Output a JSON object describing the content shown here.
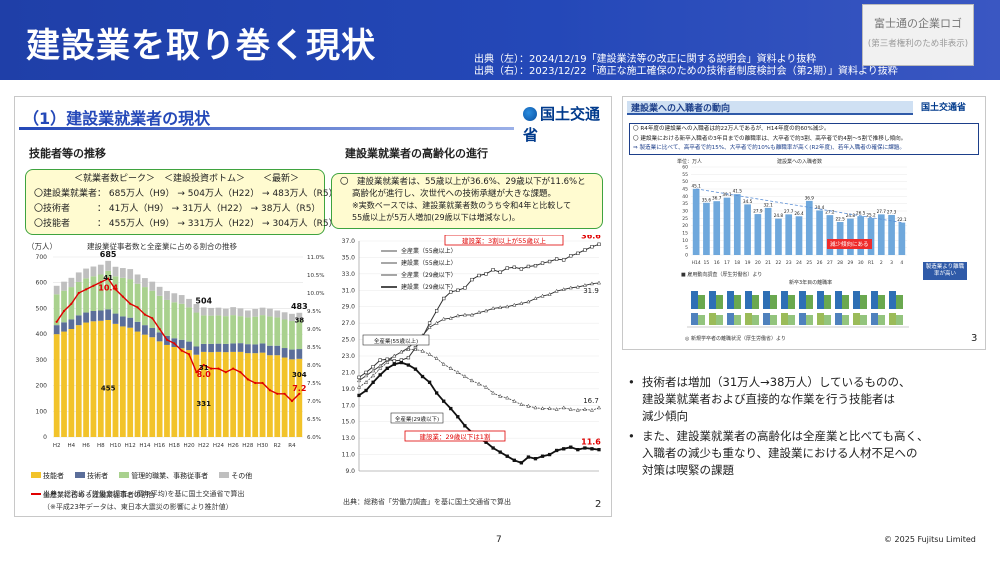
{
  "header": {
    "title": "建設業を取り巻く現状",
    "source_left": "出典（左）：2024/12/19「建設業法等の改正に関する説明会」資料より抜粋",
    "source_right": "出典（右）：2023/12/22「適正な施工確保のための技術者制度検討会（第2期）」資料より抜粋",
    "logo_line1": "富士通の企業ロゴ",
    "logo_line2": "(第三者権利のため非表示)"
  },
  "left_slide": {
    "title": "（1）建設業就業者の現状",
    "ministry": "国土交通省",
    "sec1": "技能者等の推移",
    "sec2": "建設業就業者の高齢化の進行",
    "box1": {
      "header": "＜就業者数ピーク＞　＜建設投資ボトム＞　　＜最新＞",
      "rows": [
        "〇建設業就業者：  685万人（H9）  →  504万人（H22）  →  483万人（R5）",
        "〇技術者　　　：   41万人（H9）  →   31万人（H22）  →   38万人（R5）",
        "〇技能者　　　：  455万人（H9）  →  331万人（H22）  →  304万人（R5）"
      ]
    },
    "box2": {
      "line1": "〇　建設業就業者は、55歳以上が36.6%、29歳以下が11.6%と",
      "line2": "高齢化が進行し、次世代への技術承継が大きな課題。",
      "line3": "※実数ベースでは、建設業就業者数のうち令和4年と比較して",
      "line4": "55歳以上が5万人増加(29歳以下は増減なし)。"
    },
    "chart1_unit": "（万人）",
    "chart1_title": "建設業従事者数と全産業に占める割合の推移",
    "chart1_legend": [
      "技能者",
      "技術者",
      "管理的職業、事務従事者",
      "その他",
      "全産業に占める建設業従事者の割合"
    ],
    "chart1_src1": "出典：総務省「労働力調査」(暦年平均)を基に国土交通省で算出",
    "chart1_src2": "（※平成23年データは、東日本大震災の影響により推計値）",
    "chart2_callout1": "建設業：3割以上が55歳以上",
    "chart2_callout2": "建設業：29歳以下は1割",
    "chart2_label1": "全産業(55歳以上)",
    "chart2_label2": "全産業(29歳以下)",
    "chart2_src": "出典：総務省「労働力調査」を基に国土交通省で算出",
    "page_no": "2"
  },
  "right_slide": {
    "title": "建設業への入職者の動向",
    "ministry": "国土交通省",
    "line1": "〇 R4年度の建設業への入職者は約22万人であるが、H14年度の約60%減少。",
    "line2": "〇 建設業における新卒入職者の3年目までの離職率は、大卒者で約3割、高卒者で約4割～5割で推移し傾向。",
    "line3": "⇒ 製造業に比べて、高卒者で約15%、大卒者で約10%も離職率が高く(R2年度)、若年入職者の確保に課題。",
    "bar_unit": "単位：万人",
    "bar_legend": "建設業への入職者数",
    "bar_callout": "減少傾向にある",
    "bar_src": "■ 雇用動向調査（厚生労働省）より",
    "chart3_title": "新卒3年目の離職率",
    "chart3_callout": "製造業より離職率が高い",
    "chart3_src": "◎ 新規学卒者の離職状況（厚生労働省）より",
    "page_no": "3"
  },
  "bullets": [
    [
      "技術者は増加（31万人→38万人）しているものの、",
      "建設業就業者および直接的な作業を行う技能者は",
      "減少傾向"
    ],
    [
      "また、建設業就業者の高齢化は全産業と比べても高く、",
      "入職者の減少も重なり、建設業における人材不足への",
      "対策は喫緊の課題"
    ]
  ],
  "footer": {
    "page": "7",
    "copyright": "© 2025 Fujitsu Limited"
  },
  "chart_data": [
    {
      "type": "bar",
      "title": "建設業従事者数と全産業に占める割合の推移",
      "unit": "万人",
      "categories": [
        "H2",
        "H3",
        "H4",
        "H5",
        "H6",
        "H7",
        "H8",
        "H9",
        "H10",
        "H11",
        "H12",
        "H13",
        "H14",
        "H15",
        "H16",
        "H17",
        "H18",
        "H19",
        "H20",
        "H21",
        "H22",
        "H23",
        "H24",
        "H25",
        "H26",
        "H27",
        "H28",
        "H29",
        "H30",
        "R1",
        "R2",
        "R3",
        "R4",
        "R5"
      ],
      "x_tick_labels": [
        "H2",
        "H4",
        "H6",
        "H8",
        "H10",
        "H12",
        "H14",
        "H16",
        "H18",
        "H20",
        "H22",
        "H24",
        "H26",
        "H28",
        "H30",
        "R2",
        "R4"
      ],
      "ylim": [
        0,
        700
      ],
      "y_ticks": [
        0,
        100,
        200,
        300,
        400,
        500,
        600,
        700
      ],
      "y2lim": [
        6.0,
        11.0
      ],
      "y2_ticks": [
        "6.0%",
        "6.5%",
        "7.0%",
        "7.5%",
        "8.0%",
        "8.5%",
        "9.0%",
        "9.5%",
        "10.0%",
        "10.5%",
        "11.0%"
      ],
      "total": [
        588,
        604,
        619,
        640,
        655,
        663,
        670,
        685,
        662,
        657,
        653,
        632,
        618,
        604,
        584,
        568,
        559,
        552,
        537,
        517,
        504,
        502,
        503,
        499,
        505,
        500,
        492,
        498,
        503,
        499,
        492,
        485,
        479,
        483
      ],
      "series": [
        {
          "name": "技能者",
          "values": [
            400,
            410,
            420,
            435,
            445,
            450,
            452,
            455,
            440,
            430,
            425,
            410,
            398,
            388,
            372,
            358,
            350,
            345,
            338,
            320,
            331,
            330,
            331,
            330,
            331,
            331,
            326,
            326,
            328,
            318,
            318,
            309,
            302,
            304
          ]
        },
        {
          "name": "技術者",
          "values": [
            35,
            36,
            37,
            38,
            39,
            40,
            40,
            41,
            40,
            39,
            39,
            38,
            37,
            36,
            35,
            35,
            34,
            33,
            33,
            32,
            31,
            32,
            32,
            32,
            33,
            34,
            35,
            34,
            36,
            37,
            37,
            37,
            38,
            38
          ]
        },
        {
          "name": "管理的職業、事務従事者",
          "values": [
            120,
            123,
            126,
            130,
            133,
            135,
            140,
            150,
            145,
            150,
            150,
            148,
            148,
            145,
            142,
            140,
            140,
            140,
            133,
            132,
            111,
            110,
            110,
            108,
            110,
            105,
            104,
            108,
            110,
            114,
            110,
            111,
            111,
            113
          ]
        },
        {
          "name": "その他",
          "values": [
            33,
            35,
            36,
            37,
            38,
            38,
            38,
            39,
            37,
            38,
            39,
            36,
            35,
            35,
            35,
            35,
            35,
            34,
            33,
            33,
            31,
            30,
            30,
            29,
            31,
            30,
            27,
            30,
            29,
            30,
            27,
            28,
            28,
            28
          ]
        }
      ],
      "line_series": {
        "name": "全産業に占める建設業従事者の割合",
        "values": [
          9.2,
          9.5,
          9.7,
          10.0,
          10.1,
          10.2,
          10.3,
          10.4,
          10.1,
          9.9,
          9.7,
          9.6,
          9.4,
          9.3,
          9.0,
          8.7,
          8.6,
          8.4,
          8.3,
          7.8,
          8.0,
          7.9,
          7.9,
          7.8,
          7.9,
          7.8,
          7.6,
          7.5,
          7.5,
          7.3,
          7.2,
          7.2,
          7.0,
          7.2
        ]
      },
      "annotations": [
        "685",
        "10.4",
        "41",
        "504",
        "31",
        "8.0",
        "455",
        "331",
        "483",
        "38",
        "7.2",
        "304"
      ]
    },
    {
      "type": "line",
      "ylim": [
        9.0,
        37.0
      ],
      "y_ticks": [
        "9.0",
        "11.0",
        "13.0",
        "15.0",
        "17.0",
        "19.0",
        "21.0",
        "23.0",
        "25.0",
        "27.0",
        "29.0",
        "31.0",
        "33.0",
        "35.0",
        "37.0"
      ],
      "series": [
        {
          "name": "全産業（55歳以上）",
          "values": [
            20.0,
            20.6,
            21.2,
            21.8,
            22.5,
            23.0,
            23.5,
            24.0,
            24.8,
            25.5,
            26.5,
            27.0,
            27.5,
            27.6,
            27.9,
            28.0,
            28.0,
            28.3,
            28.5,
            28.8,
            28.9,
            29.0,
            29.2,
            29.4,
            29.6,
            30.0,
            30.3,
            30.5,
            30.9,
            31.1,
            31.3,
            31.4,
            31.6,
            31.8,
            31.9
          ]
        },
        {
          "name": "建設業（55歳以上）",
          "values": [
            20.4,
            21.0,
            21.7,
            22.5,
            22.6,
            22.4,
            22.5,
            22.8,
            24.0,
            25.3,
            27.0,
            28.5,
            30.0,
            30.8,
            31.0,
            31.3,
            32.3,
            32.8,
            33.0,
            33.5,
            33.2,
            33.7,
            33.8,
            33.6,
            33.9,
            34.0,
            34.3,
            34.5,
            34.8,
            34.7,
            35.2,
            35.5,
            35.9,
            36.3,
            36.6
          ]
        },
        {
          "name": "全産業（29歳以下）",
          "values": [
            19.2,
            19.8,
            20.6,
            21.5,
            22.2,
            23.0,
            23.5,
            23.8,
            23.8,
            23.6,
            23.2,
            22.7,
            22.0,
            21.5,
            21.0,
            20.5,
            20.0,
            19.6,
            19.2,
            18.5,
            18.1,
            17.9,
            17.5,
            17.1,
            16.9,
            16.7,
            16.6,
            16.6,
            16.5,
            16.7,
            16.5,
            16.4,
            16.5,
            16.4,
            16.7
          ]
        },
        {
          "name": "建設業（29歳以下）",
          "values": [
            18.2,
            18.8,
            19.8,
            20.7,
            21.5,
            22.0,
            22.2,
            21.9,
            21.4,
            20.5,
            19.8,
            18.5,
            17.5,
            16.6,
            15.6,
            14.5,
            13.7,
            13.0,
            12.5,
            11.8,
            11.3,
            10.8,
            10.3,
            10.0,
            10.7,
            10.5,
            10.8,
            11.0,
            11.5,
            11.7,
            11.9,
            11.6,
            11.8,
            11.7,
            11.6
          ]
        }
      ],
      "end_labels": [
        "36.6",
        "31.9",
        "16.7",
        "11.6"
      ]
    },
    {
      "type": "bar",
      "title": "建設業への入職者数",
      "unit": "万人",
      "categories": [
        "H14",
        "15",
        "16",
        "17",
        "18",
        "19",
        "20",
        "21",
        "22",
        "23",
        "24",
        "25",
        "26",
        "27",
        "28",
        "29",
        "30",
        "R1",
        "2",
        "3",
        "4"
      ],
      "values": [
        45.1,
        35.6,
        36.7,
        39.1,
        41.5,
        34.5,
        27.9,
        32.1,
        24.8,
        27.7,
        26.4,
        36.9,
        30.4,
        27.2,
        22.5,
        24.8,
        26.5,
        25.2,
        27.7,
        27.3,
        22.1
      ],
      "ylim": [
        0,
        60
      ],
      "y_ticks": [
        0,
        5,
        10,
        15,
        20,
        25,
        30,
        35,
        40,
        45,
        50,
        55,
        60
      ]
    }
  ]
}
